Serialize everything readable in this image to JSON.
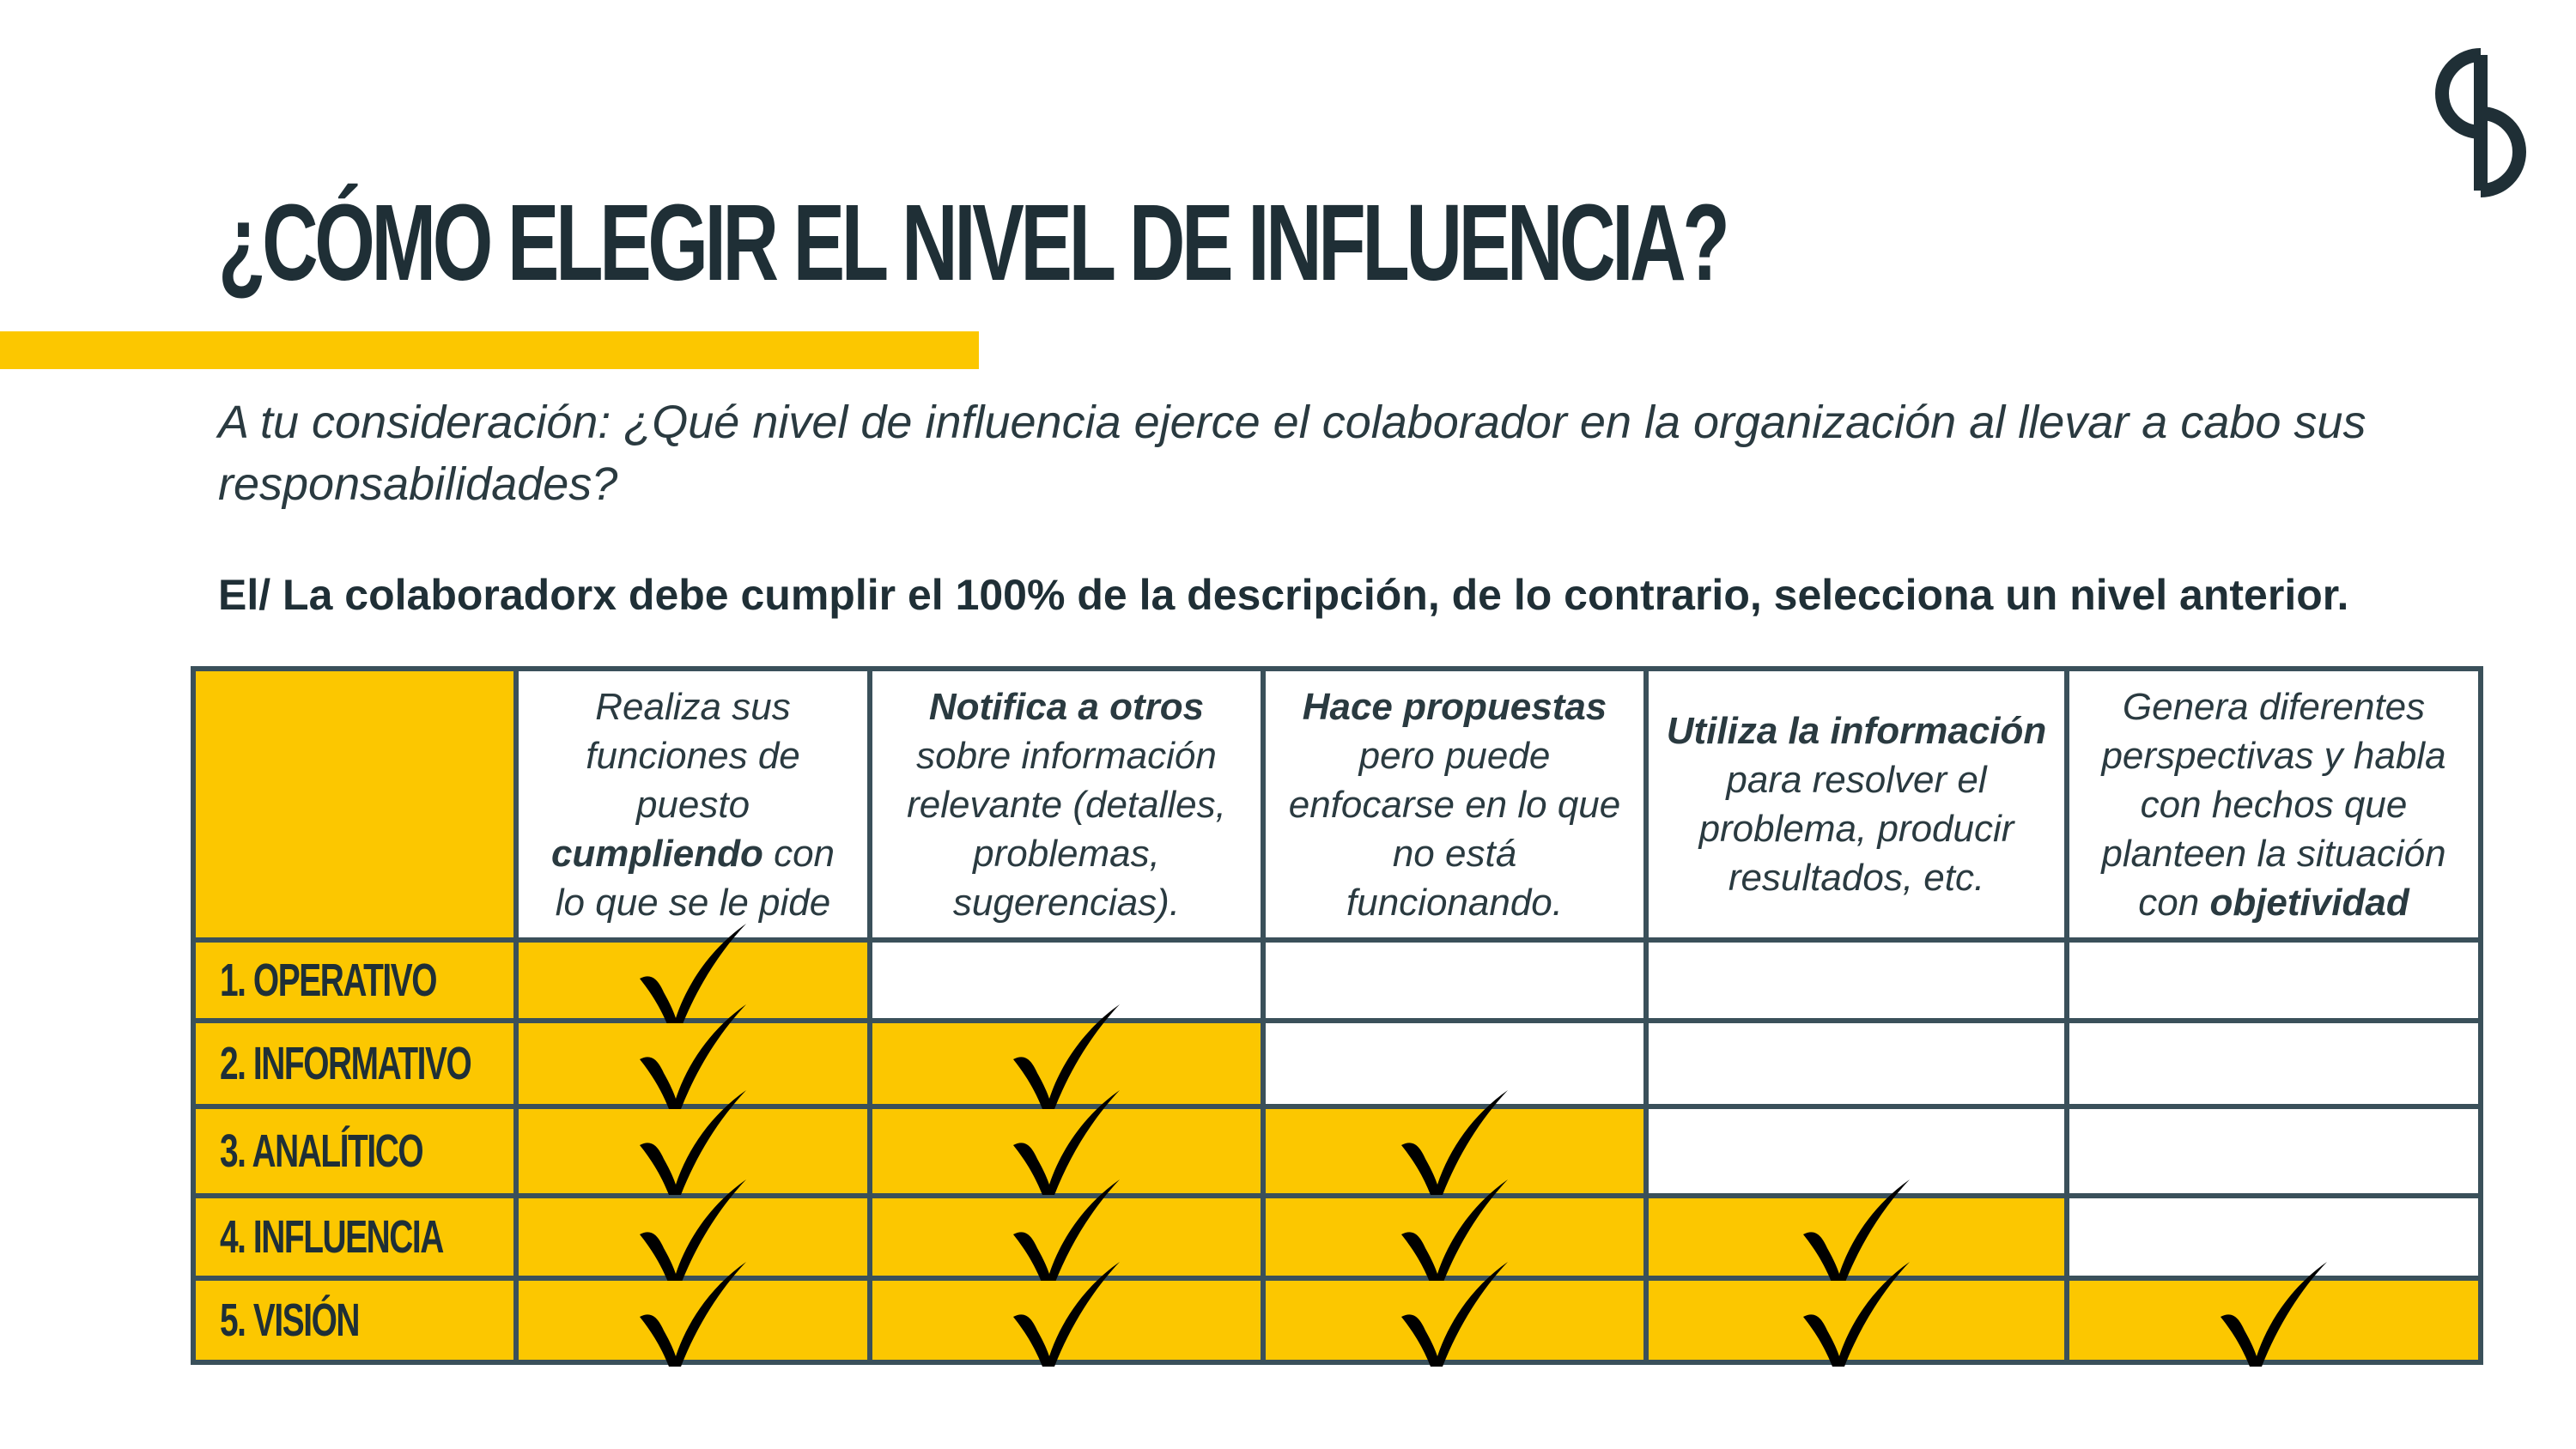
{
  "brand": {
    "logo_icon": "s-monogram-icon",
    "accent_color": "#fcc700",
    "dark_color": "#1f2f36",
    "border_color": "#3a505a"
  },
  "title": "¿CÓMO ELEGIR EL NIVEL DE INFLUENCIA?",
  "question": "A tu consideración: ¿Qué nivel de influencia ejerce el colaborador en la organización al llevar a cabo sus responsabilidades?",
  "instruction": "El/ La colaboradorx debe cumplir el 100% de la descripción, de lo contrario, selecciona un nivel anterior.",
  "columns": [
    {
      "parts": [
        "Realiza sus funciones de puesto ",
        "cumpliendo",
        " con lo que se le pide"
      ]
    },
    {
      "parts": [
        "",
        "Notifica a otros",
        " sobre información relevante (detalles, problemas, sugerencias)."
      ]
    },
    {
      "parts": [
        "",
        "Hace propuestas",
        " pero puede enfocarse en lo que no está funcionando."
      ]
    },
    {
      "parts": [
        "",
        "Utiliza la información",
        " para resolver el problema, producir resultados, etc."
      ]
    },
    {
      "parts": [
        "Genera diferentes perspectivas y habla con hechos que planteen la situación con ",
        "objetividad",
        ""
      ]
    }
  ],
  "levels": [
    "1. OPERATIVO",
    "2. INFORMATIVO",
    "3. ANALÍTICO",
    "4. INFLUENCIA",
    "5. VISIÓN"
  ],
  "checks": [
    [
      true,
      false,
      false,
      false,
      false
    ],
    [
      true,
      true,
      false,
      false,
      false
    ],
    [
      true,
      true,
      true,
      false,
      false
    ],
    [
      true,
      true,
      true,
      true,
      false
    ],
    [
      true,
      true,
      true,
      true,
      true
    ]
  ],
  "check_icon": "checkmark-icon"
}
